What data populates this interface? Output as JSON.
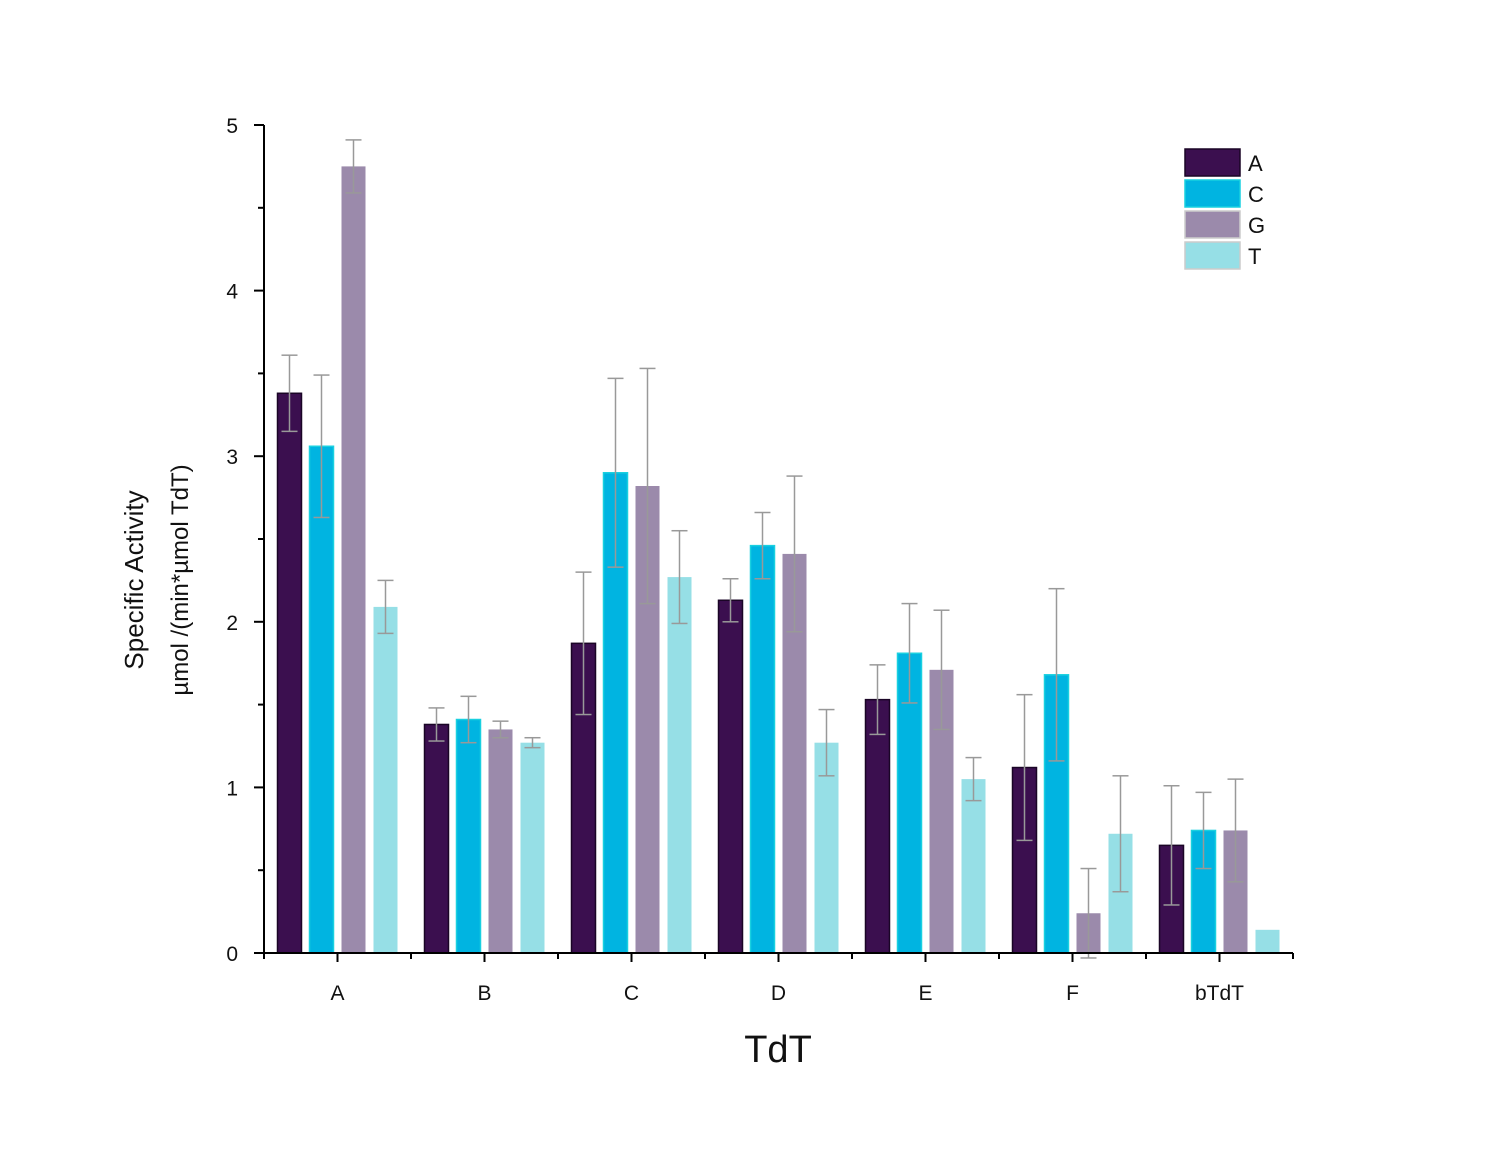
{
  "chart_data": {
    "type": "bar",
    "title": "",
    "xlabel": "TdT",
    "ylabel": "Specific Activity",
    "ylabel_units": "µmol /(min*µmol TdT)",
    "ylim": [
      0,
      5
    ],
    "yticks": [
      "0",
      "1",
      "2",
      "3",
      "4",
      "5"
    ],
    "grid": false,
    "legend_position": "top-right",
    "categories": [
      "A",
      "B",
      "C",
      "D",
      "E",
      "F",
      "bTdT"
    ],
    "series": [
      {
        "name": "A",
        "color": "#3b0f4f",
        "values": [
          3.38,
          1.38,
          1.87,
          2.13,
          1.53,
          1.12,
          0.65
        ],
        "errors": [
          0.23,
          0.1,
          0.43,
          0.13,
          0.21,
          0.44,
          0.36
        ]
      },
      {
        "name": "C",
        "color": "#00b4e1",
        "values": [
          3.06,
          1.41,
          2.9,
          2.46,
          1.81,
          1.68,
          0.74
        ],
        "errors": [
          0.43,
          0.14,
          0.57,
          0.2,
          0.3,
          0.52,
          0.23
        ]
      },
      {
        "name": "G",
        "color": "#9b8aab",
        "values": [
          4.75,
          1.35,
          2.82,
          2.41,
          1.71,
          0.24,
          0.74
        ],
        "errors": [
          0.16,
          0.05,
          0.71,
          0.47,
          0.36,
          0.27,
          0.31
        ]
      },
      {
        "name": "T",
        "color": "#96dfe6",
        "values": [
          2.09,
          1.27,
          2.27,
          1.27,
          1.05,
          0.72,
          0.14
        ],
        "errors": [
          0.16,
          0.03,
          0.28,
          0.2,
          0.13,
          0.35,
          0
        ]
      }
    ]
  }
}
